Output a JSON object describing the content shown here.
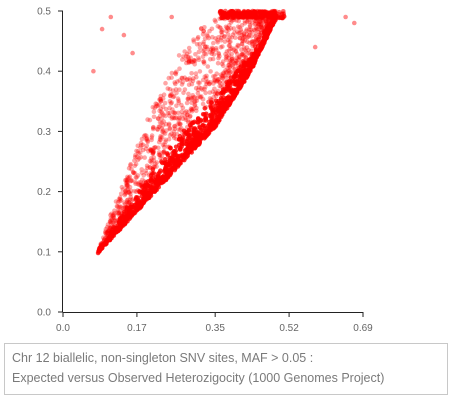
{
  "chart_data": {
    "type": "scatter",
    "title": "",
    "xlabel": "",
    "ylabel": "",
    "xlim": [
      0,
      0.69
    ],
    "ylim": [
      0,
      0.5
    ],
    "x_ticks": [
      "0.0",
      "0.17",
      "0.35",
      "0.52",
      "0.69"
    ],
    "y_ticks": [
      "0.0",
      "0.1",
      "0.2",
      "0.3",
      "0.4",
      "0.5"
    ],
    "point_color": "#ff0000",
    "series": [
      {
        "name": "SNV sites",
        "description": "Dense band of points from about (0.08, 0.10) up to (0.50, 0.50); observed heterozygosity (y) vs expected heterozygosity (x)",
        "band_lower_edge": [
          [
            0.08,
            0.1
          ],
          [
            0.17,
            0.17
          ],
          [
            0.26,
            0.24
          ],
          [
            0.35,
            0.31
          ],
          [
            0.43,
            0.4
          ],
          [
            0.49,
            0.49
          ]
        ],
        "band_upper_edge": [
          [
            0.08,
            0.1
          ],
          [
            0.14,
            0.22
          ],
          [
            0.2,
            0.33
          ],
          [
            0.26,
            0.42
          ],
          [
            0.33,
            0.48
          ],
          [
            0.38,
            0.5
          ],
          [
            0.5,
            0.5
          ]
        ],
        "outliers": [
          {
            "x": 0.07,
            "y": 0.4
          },
          {
            "x": 0.09,
            "y": 0.47
          },
          {
            "x": 0.11,
            "y": 0.49
          },
          {
            "x": 0.14,
            "y": 0.46
          },
          {
            "x": 0.16,
            "y": 0.43
          },
          {
            "x": 0.25,
            "y": 0.49
          },
          {
            "x": 0.58,
            "y": 0.44
          },
          {
            "x": 0.65,
            "y": 0.49
          },
          {
            "x": 0.67,
            "y": 0.48
          }
        ]
      }
    ]
  },
  "caption": {
    "line1": "Chr 12 biallelic, non-singleton SNV sites, MAF > 0.05 :",
    "line2": "Expected versus Observed Heterozigocity (1000 Genomes Project)"
  }
}
